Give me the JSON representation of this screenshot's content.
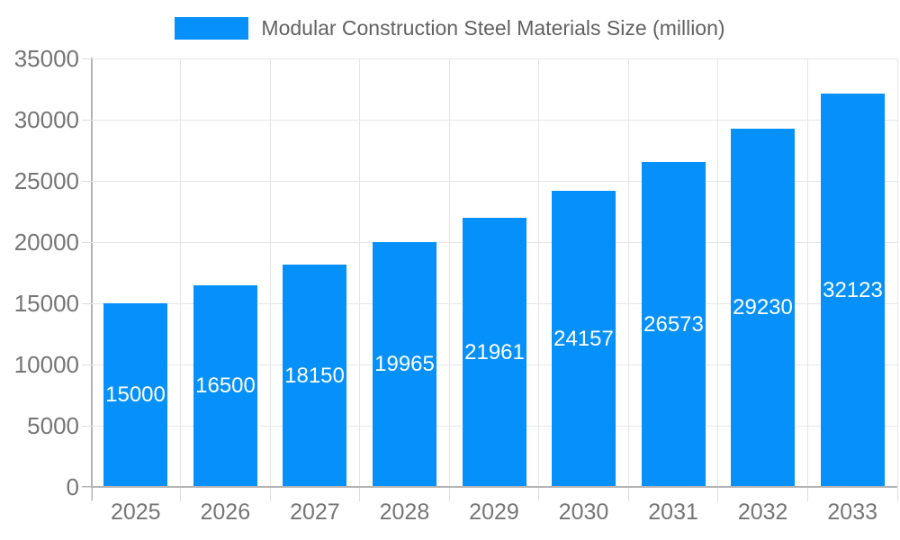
{
  "legend": {
    "label": "Modular Construction Steel Materials Size (million)"
  },
  "chart_data": {
    "type": "bar",
    "title": "Modular Construction Steel Materials Size (million)",
    "categories": [
      "2025",
      "2026",
      "2027",
      "2028",
      "2029",
      "2030",
      "2031",
      "2032",
      "2033"
    ],
    "values": [
      15000,
      16500,
      18150,
      19965,
      21961,
      24157,
      26573,
      29230,
      32123
    ],
    "xlabel": "",
    "ylabel": "",
    "ylim": [
      0,
      35000
    ],
    "ytick_step": 5000,
    "yticks": [
      0,
      5000,
      10000,
      15000,
      20000,
      25000,
      30000,
      35000
    ],
    "grid": true,
    "legend_position": "top-center",
    "value_labels": "inside-center",
    "colors": {
      "bar": "#0590fa",
      "value_label": "#ffffff",
      "axis_text": "#757575",
      "legend_text": "#616161",
      "gridline": "#e6e6e6",
      "axis_line": "#b3b3b3",
      "background": "#ffffff"
    }
  }
}
